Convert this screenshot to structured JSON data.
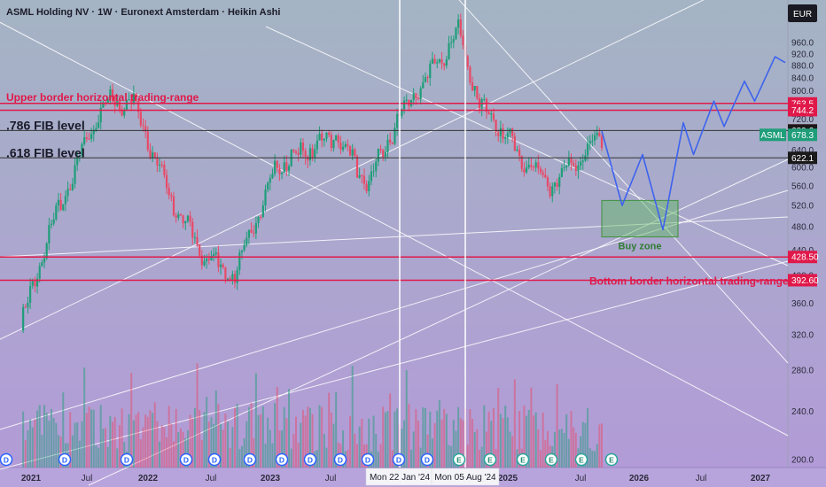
{
  "header": {
    "title": "ASML Holding NV · 1W · Euronext Amsterdam · Heikin Ashi",
    "currency": "EUR"
  },
  "colors": {
    "bg_top": "#a4b4c4",
    "bg_bottom": "#b39ad8",
    "up": "#1f9e79",
    "down": "#e84a67",
    "red_line": "#e0194a",
    "projection": "#3d63ee",
    "trend": "#ffffff",
    "buy_zone": "#5cb85c"
  },
  "chart_data": {
    "type": "candlestick",
    "title": "ASML Holding NV · 1W · Euronext Amsterdam · Heikin Ashi",
    "x_axis": {
      "ticks": [
        "2021",
        "Jul",
        "2022",
        "Jul",
        "2023",
        "Jul",
        "2025",
        "Jul",
        "2026",
        "Jul",
        "2027"
      ],
      "highlighted": [
        "Mon 22 Jan '24",
        "Mon 05 Aug '24"
      ]
    },
    "y_axis": {
      "scale": "log",
      "range": [
        190,
        1030
      ],
      "ticks": [
        200,
        240,
        280,
        320,
        360,
        400,
        440,
        480,
        520,
        560,
        600,
        640,
        680,
        720,
        760,
        800,
        840,
        880,
        920,
        960
      ]
    },
    "price_markers": [
      {
        "value": 763.5,
        "label": "763.5",
        "color": "#e0194a"
      },
      {
        "value": 744.2,
        "label": "744.2",
        "color": "#e0194a"
      },
      {
        "value": 689.8,
        "label": "689.8",
        "color": "#e84a67"
      },
      {
        "value": 689.6,
        "label": "689.6",
        "color": "#1a1a1a"
      },
      {
        "value": 678.3,
        "label": "678.3",
        "color": "#1f9e79",
        "tag": "ASML"
      },
      {
        "value": 622.1,
        "label": "622.1",
        "color": "#1a1a1a"
      },
      {
        "value": 428.5,
        "label": "428.50",
        "color": "#e0194a"
      },
      {
        "value": 392.6,
        "label": "392.60",
        "color": "#e0194a"
      }
    ],
    "levels": [
      {
        "value": 763.5,
        "label": "Upper border horizontal trading-range",
        "color": "#e0194a"
      },
      {
        "value": 744.2,
        "label": "",
        "color": "#e0194a"
      },
      {
        "value": 689.6,
        "label": ".786 FIB level",
        "color": "#333333"
      },
      {
        "value": 622.1,
        "label": ".618 FIB level",
        "color": "#333333"
      },
      {
        "value": 428.5,
        "label": "",
        "color": "#e0194a"
      },
      {
        "value": 392.6,
        "label": "Bottom border horizontal trading-range",
        "color": "#e0194a"
      }
    ],
    "buy_zone": {
      "label": "Buy zone",
      "from_price": 462,
      "to_price": 530
    },
    "key_prices": [
      {
        "date": "2020-12",
        "price": 330
      },
      {
        "date": "2021-03",
        "price": 480
      },
      {
        "date": "2021-08",
        "price": 760
      },
      {
        "date": "2021-11",
        "price": 770
      },
      {
        "date": "2022-03",
        "price": 520
      },
      {
        "date": "2022-06",
        "price": 430
      },
      {
        "date": "2022-09",
        "price": 400
      },
      {
        "date": "2023-01",
        "price": 600
      },
      {
        "date": "2023-07",
        "price": 680
      },
      {
        "date": "2023-10",
        "price": 560
      },
      {
        "date": "2024-01",
        "price": 720
      },
      {
        "date": "2024-07",
        "price": 1000
      },
      {
        "date": "2024-09",
        "price": 760
      },
      {
        "date": "2025-01",
        "price": 630
      },
      {
        "date": "2025-04",
        "price": 560
      },
      {
        "date": "2025-09",
        "price": 678.3
      }
    ],
    "projection": [
      {
        "date": "2025-09",
        "price": 688
      },
      {
        "date": "2025-11",
        "price": 520
      },
      {
        "date": "2026-01",
        "price": 630
      },
      {
        "date": "2026-03",
        "price": 475
      },
      {
        "date": "2026-05",
        "price": 710
      },
      {
        "date": "2026-06",
        "price": 630
      },
      {
        "date": "2026-08",
        "price": 770
      },
      {
        "date": "2026-09",
        "price": 700
      },
      {
        "date": "2026-11",
        "price": 830
      },
      {
        "date": "2026-12",
        "price": 770
      },
      {
        "date": "2027-02",
        "price": 910
      },
      {
        "date": "2027-03",
        "price": 890
      }
    ],
    "event_markers": [
      "D",
      "D",
      "D",
      "D",
      "D",
      "D",
      "D",
      "D",
      "D",
      "D",
      "D",
      "D",
      "E",
      "E",
      "E",
      "E",
      "E",
      "E",
      "E",
      "E",
      "E",
      "E",
      "E"
    ]
  }
}
